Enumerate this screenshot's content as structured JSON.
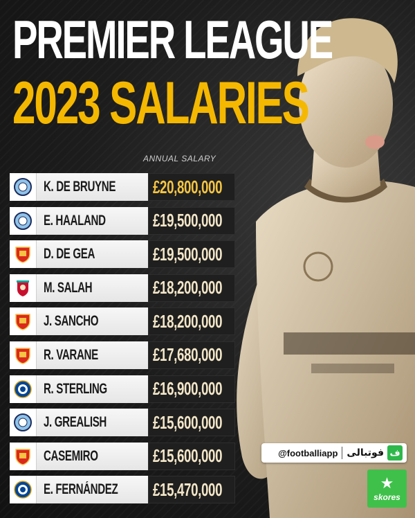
{
  "title": {
    "line1": "PREMIER LEAGUE",
    "line2": "2023 SALARIES"
  },
  "column_label": "ANNUAL SALARY",
  "players": [
    {
      "name": "K. DE BRUYNE",
      "salary": "£20,800,000",
      "club_icon": "man-city-crest-icon"
    },
    {
      "name": "E. HAALAND",
      "salary": "£19,500,000",
      "club_icon": "man-city-crest-icon"
    },
    {
      "name": "D. DE GEA",
      "salary": "£19,500,000",
      "club_icon": "man-united-crest-icon"
    },
    {
      "name": "M. SALAH",
      "salary": "£18,200,000",
      "club_icon": "liverpool-crest-icon"
    },
    {
      "name": "J. SANCHO",
      "salary": "£18,200,000",
      "club_icon": "man-united-crest-icon"
    },
    {
      "name": "R. VARANE",
      "salary": "£17,680,000",
      "club_icon": "man-united-crest-icon"
    },
    {
      "name": "R. STERLING",
      "salary": "£16,900,000",
      "club_icon": "chelsea-crest-icon"
    },
    {
      "name": "J. GREALISH",
      "salary": "£15,600,000",
      "club_icon": "man-city-crest-icon"
    },
    {
      "name": "CASEMIRO",
      "salary": "£15,600,000",
      "club_icon": "man-united-crest-icon"
    },
    {
      "name": "E. FERNÁNDEZ",
      "salary": "£15,470,000",
      "club_icon": "chelsea-crest-icon"
    }
  ],
  "watermark": {
    "handle": "@footballiapp",
    "brand": "فوتبالی",
    "brand_logo": "ف"
  },
  "skores": {
    "label": "skores",
    "icon": "star-icon"
  },
  "colors": {
    "title_white": "#ffffff",
    "title_gold": "#f5b800",
    "salary_text": "#f3e6c8",
    "skores_green": "#3fc04a"
  }
}
